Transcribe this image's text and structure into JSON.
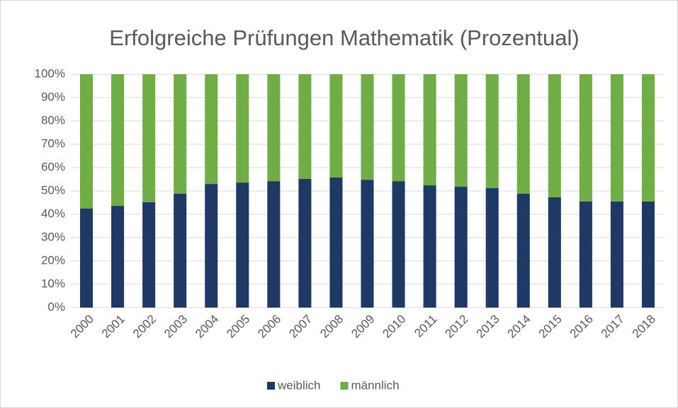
{
  "chart_data": {
    "type": "stacked_bar",
    "title": "Erfolgreiche Prüfungen Mathematik (Prozentual)",
    "categories": [
      "2000",
      "2001",
      "2002",
      "2003",
      "2004",
      "2005",
      "2006",
      "2007",
      "2008",
      "2009",
      "2010",
      "2011",
      "2012",
      "2013",
      "2014",
      "2015",
      "2016",
      "2017",
      "2018"
    ],
    "series": [
      {
        "name": "weiblich",
        "color": "#1f3864",
        "values": [
          42.5,
          43.6,
          45.2,
          48.8,
          53,
          53.6,
          54.2,
          55.2,
          55.8,
          54.8,
          54.2,
          52.4,
          51.8,
          51.2,
          48.8,
          47.3,
          45.5,
          45.5,
          45.5
        ]
      },
      {
        "name": "männlich",
        "color": "#70ad47",
        "values": [
          57.5,
          56.4,
          54.8,
          51.2,
          47,
          46.4,
          45.8,
          44.8,
          44.2,
          45.2,
          45.8,
          47.6,
          48.2,
          48.8,
          51.2,
          52.7,
          54.5,
          54.5,
          54.5
        ]
      }
    ],
    "ylim": [
      0,
      100
    ],
    "yticks": [
      {
        "value": 0,
        "label": "0%"
      },
      {
        "value": 10,
        "label": "10%"
      },
      {
        "value": 20,
        "label": "20%"
      },
      {
        "value": 30,
        "label": "30%"
      },
      {
        "value": 40,
        "label": "40%"
      },
      {
        "value": 50,
        "label": "50%"
      },
      {
        "value": 60,
        "label": "60%"
      },
      {
        "value": 70,
        "label": "70%"
      },
      {
        "value": 80,
        "label": "80%"
      },
      {
        "value": 90,
        "label": "90%"
      },
      {
        "value": 100,
        "label": "100%"
      }
    ],
    "grid": true,
    "legend": "bottom"
  }
}
